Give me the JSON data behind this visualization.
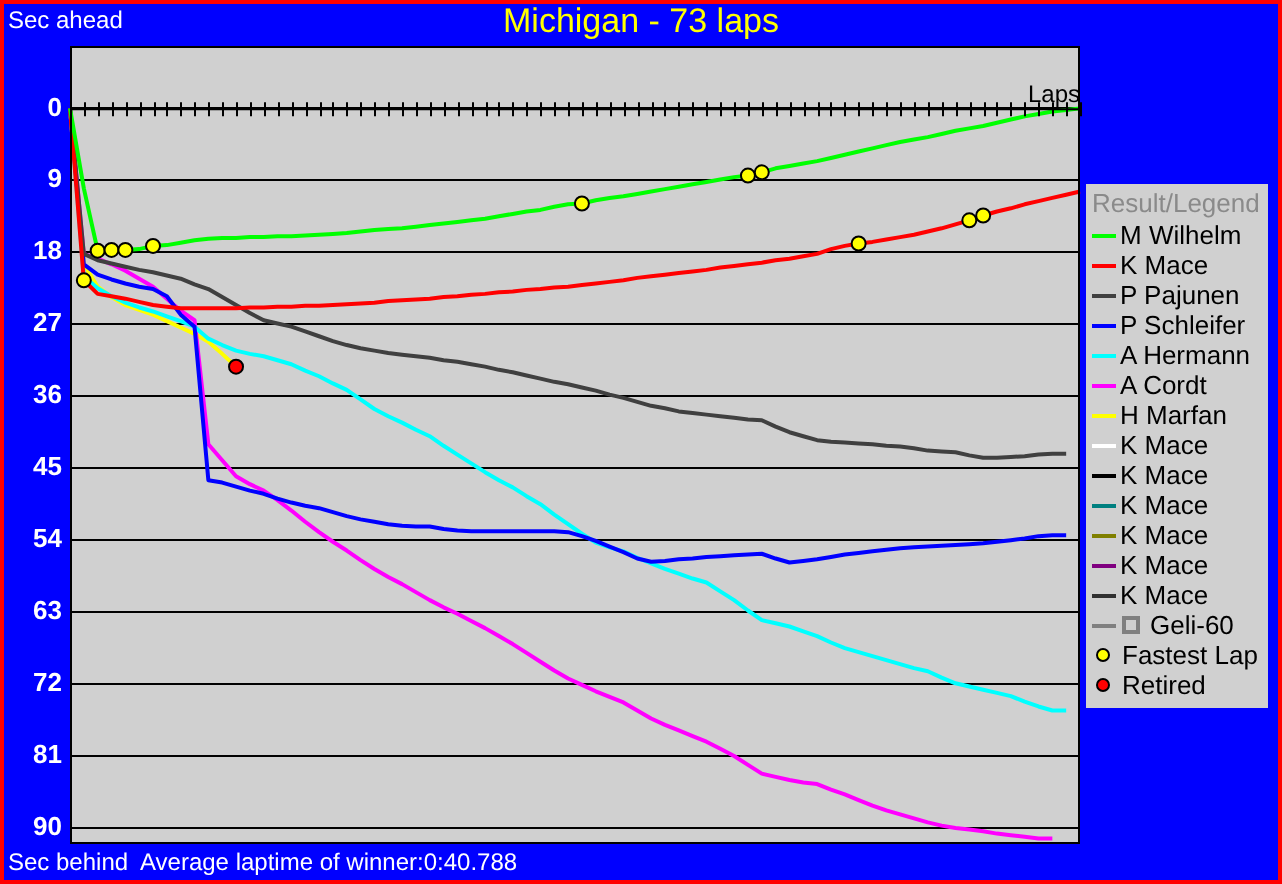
{
  "chart_data": {
    "type": "line",
    "title": "Michigan - 73 laps",
    "xlabel": "Laps",
    "legend_title": "Result/Legend",
    "annotations": [
      "Sec ahead",
      "Sec behind",
      "Average laptime of winner:0:40.788"
    ],
    "categories": [
      null,
      null,
      null,
      null,
      null,
      null,
      null,
      null,
      null,
      null,
      null,
      null,
      null,
      null,
      null,
      null,
      null,
      null,
      null,
      null,
      null,
      null,
      null,
      null,
      null,
      null,
      null,
      null,
      null,
      null,
      null,
      null,
      null,
      null,
      null,
      null,
      null,
      null,
      null,
      null,
      null,
      null,
      null,
      null,
      null,
      null,
      null,
      null,
      null,
      null,
      null,
      null,
      null,
      null,
      null,
      null,
      null,
      null,
      null,
      null,
      null,
      null,
      null,
      null,
      null,
      null,
      null,
      null,
      null,
      null,
      null,
      null,
      null,
      null
    ],
    "ylim": [
      92,
      -7.8
    ],
    "yticks": [
      0,
      9,
      18,
      27,
      36,
      45,
      54,
      63,
      72,
      81,
      90
    ],
    "grid": "y",
    "legend": "right",
    "tick_labels": "y",
    "marker": "none",
    "line_style": "solid",
    "series": [
      {
        "name": "M Wilhelm",
        "color": "#00ff00",
        "values": [
          0,
          10,
          17.8,
          17.7,
          17.7,
          17.6,
          17.2,
          17.1,
          16.8,
          16.5,
          16.3,
          16.2,
          16.2,
          16.1,
          16.1,
          16.0,
          16.0,
          15.9,
          15.8,
          15.7,
          15.6,
          15.4,
          15.2,
          15.1,
          15.0,
          14.8,
          14.6,
          14.4,
          14.2,
          14.0,
          13.8,
          13.5,
          13.2,
          12.9,
          12.7,
          12.3,
          12.0,
          11.9,
          11.5,
          11.2,
          11.0,
          10.7,
          10.4,
          10.1,
          9.8,
          9.5,
          9.2,
          8.9,
          8.6,
          8.4,
          8.0,
          7.5,
          7.2,
          6.9,
          6.6,
          6.2,
          5.8,
          5.4,
          5.0,
          4.6,
          4.2,
          3.9,
          3.6,
          3.2,
          2.8,
          2.5,
          2.2,
          1.8,
          1.4,
          1.0,
          0.7,
          0.4,
          0.2,
          0
        ]
      },
      {
        "name": "K Mace",
        "color": "#ff0000",
        "values": [
          0,
          21.5,
          23.2,
          23.5,
          23.8,
          24.2,
          24.6,
          24.8,
          25.0,
          25.0,
          25.0,
          25.0,
          25.0,
          24.9,
          24.9,
          24.8,
          24.8,
          24.7,
          24.7,
          24.6,
          24.5,
          24.4,
          24.3,
          24.1,
          24.0,
          23.9,
          23.8,
          23.6,
          23.5,
          23.3,
          23.2,
          23.0,
          22.9,
          22.7,
          22.6,
          22.4,
          22.3,
          22.1,
          21.9,
          21.7,
          21.5,
          21.2,
          21.0,
          20.8,
          20.6,
          20.4,
          20.2,
          19.9,
          19.7,
          19.5,
          19.3,
          19.0,
          18.8,
          18.5,
          18.2,
          17.6,
          17.2,
          16.9,
          16.7,
          16.4,
          16.1,
          15.8,
          15.4,
          15.0,
          14.5,
          14.0,
          13.4,
          12.9,
          12.5,
          12.0,
          11.6,
          11.2,
          10.8,
          10.4
        ]
      },
      {
        "name": "P Pajunen",
        "color": "#404040",
        "values": [
          0,
          18.2,
          19.0,
          19.4,
          19.8,
          20.2,
          20.5,
          20.9,
          21.3,
          22.0,
          22.6,
          23.6,
          24.6,
          25.6,
          26.5,
          26.9,
          27.3,
          27.9,
          28.5,
          29.1,
          29.6,
          30.0,
          30.3,
          30.6,
          30.8,
          31.0,
          31.2,
          31.5,
          31.7,
          32.0,
          32.3,
          32.7,
          33.0,
          33.4,
          33.8,
          34.2,
          34.5,
          34.9,
          35.3,
          35.8,
          36.2,
          36.7,
          37.2,
          37.5,
          37.9,
          38.1,
          38.3,
          38.5,
          38.7,
          38.9,
          39.0,
          39.8,
          40.5,
          41.0,
          41.5,
          41.7,
          41.8,
          41.9,
          42.0,
          42.2,
          42.3,
          42.5,
          42.8,
          42.9,
          43.0,
          43.4,
          43.7,
          43.7,
          43.6,
          43.5,
          43.3,
          43.2,
          43.2,
          null
        ]
      },
      {
        "name": "P Schleifer",
        "color": "#0000ff",
        "values": [
          0,
          19.5,
          20.8,
          21.4,
          21.9,
          22.3,
          22.6,
          23.5,
          25.8,
          27.3,
          46.5,
          46.8,
          47.3,
          47.8,
          48.2,
          48.8,
          49.3,
          49.7,
          50.0,
          50.5,
          51.0,
          51.4,
          51.7,
          52.0,
          52.2,
          52.3,
          52.3,
          52.6,
          52.8,
          52.9,
          52.9,
          52.9,
          52.9,
          52.9,
          52.9,
          52.9,
          53.0,
          53.5,
          54.1,
          54.8,
          55.5,
          56.3,
          56.7,
          56.6,
          56.4,
          56.3,
          56.1,
          56.0,
          55.9,
          55.8,
          55.7,
          56.3,
          56.8,
          56.6,
          56.4,
          56.1,
          55.8,
          55.6,
          55.4,
          55.2,
          55.0,
          54.9,
          54.8,
          54.7,
          54.6,
          54.5,
          54.4,
          54.2,
          54.0,
          53.8,
          53.5,
          53.4,
          53.4,
          null
        ]
      },
      {
        "name": "A Hermann",
        "color": "#00ffff",
        "values": [
          0,
          21.0,
          22.5,
          23.5,
          24.3,
          24.9,
          25.4,
          26.0,
          26.6,
          27.3,
          28.8,
          29.6,
          30.3,
          30.7,
          31.0,
          31.5,
          32.0,
          32.8,
          33.5,
          34.4,
          35.2,
          36.4,
          37.6,
          38.5,
          39.3,
          40.2,
          41.0,
          42.2,
          43.3,
          44.4,
          45.5,
          46.5,
          47.4,
          48.5,
          49.5,
          50.8,
          52.0,
          53.2,
          54.3,
          54.9,
          55.4,
          56.2,
          56.9,
          57.6,
          58.2,
          58.8,
          59.3,
          60.4,
          61.5,
          62.8,
          64.0,
          64.4,
          64.8,
          65.4,
          66.0,
          66.8,
          67.5,
          68.0,
          68.5,
          69.0,
          69.5,
          70.0,
          70.4,
          71.2,
          71.9,
          72.3,
          72.7,
          73.1,
          73.5,
          74.2,
          74.8,
          75.3,
          75.3,
          null
        ]
      },
      {
        "name": "A Cordt",
        "color": "#ff00ff",
        "values": [
          0,
          18.2,
          18.8,
          19.5,
          20.3,
          21.3,
          22.3,
          23.8,
          25.3,
          26.5,
          42.0,
          44.0,
          46.0,
          47.0,
          47.8,
          49.0,
          50.3,
          51.7,
          53.0,
          54.2,
          55.3,
          56.5,
          57.6,
          58.6,
          59.5,
          60.5,
          61.5,
          62.4,
          63.2,
          64.1,
          65.0,
          66.0,
          67.0,
          68.1,
          69.2,
          70.3,
          71.3,
          72.1,
          72.9,
          73.6,
          74.3,
          75.3,
          76.3,
          77.1,
          77.8,
          78.5,
          79.2,
          80.1,
          81.0,
          82.1,
          83.2,
          83.6,
          84.0,
          84.3,
          84.5,
          85.2,
          85.8,
          86.5,
          87.2,
          87.8,
          88.3,
          88.8,
          89.3,
          89.7,
          90.0,
          90.2,
          90.4,
          90.7,
          90.9,
          91.1,
          91.3,
          91.3,
          null,
          null
        ]
      },
      {
        "name": "H Marfan",
        "color": "#ffff00",
        "values": [
          0,
          19.5,
          22.3,
          23.6,
          24.6,
          25.2,
          25.8,
          26.6,
          27.4,
          28.2,
          29.2,
          30.7,
          32.3,
          null,
          null,
          null,
          null,
          null,
          null,
          null,
          null,
          null,
          null,
          null,
          null,
          null,
          null,
          null,
          null,
          null,
          null,
          null,
          null,
          null,
          null,
          null,
          null,
          null,
          null,
          null,
          null,
          null,
          null,
          null,
          null,
          null,
          null,
          null,
          null,
          null,
          null,
          null,
          null,
          null,
          null,
          null,
          null,
          null,
          null,
          null,
          null,
          null,
          null,
          null,
          null,
          null,
          null,
          null,
          null,
          null,
          null,
          null,
          null,
          null
        ]
      },
      {
        "name": "K Mace",
        "color": "#ffffff",
        "values": [
          null,
          null,
          null,
          null,
          null,
          null,
          null,
          null,
          null,
          null,
          null,
          null,
          null,
          null,
          null,
          null,
          null,
          null,
          null,
          null,
          null,
          null,
          null,
          null,
          null,
          null,
          null,
          null,
          null,
          null,
          null,
          null,
          null,
          null,
          null,
          null,
          null,
          null,
          null,
          null,
          null,
          null,
          null,
          null,
          null,
          null,
          null,
          null,
          null,
          null,
          null,
          null,
          null,
          null,
          null,
          null,
          null,
          null,
          null,
          null,
          null,
          null,
          null,
          null,
          null,
          null,
          null,
          null,
          null,
          null,
          null,
          null,
          null,
          null
        ]
      },
      {
        "name": "K Mace",
        "color": "#000000",
        "values": [
          null,
          null,
          null,
          null,
          null,
          null,
          null,
          null,
          null,
          null,
          null,
          null,
          null,
          null,
          null,
          null,
          null,
          null,
          null,
          null,
          null,
          null,
          null,
          null,
          null,
          null,
          null,
          null,
          null,
          null,
          null,
          null,
          null,
          null,
          null,
          null,
          null,
          null,
          null,
          null,
          null,
          null,
          null,
          null,
          null,
          null,
          null,
          null,
          null,
          null,
          null,
          null,
          null,
          null,
          null,
          null,
          null,
          null,
          null,
          null,
          null,
          null,
          null,
          null,
          null,
          null,
          null,
          null,
          null,
          null,
          null,
          null,
          null,
          null
        ]
      },
      {
        "name": "K Mace",
        "color": "#008080",
        "values": [
          null,
          null,
          null,
          null,
          null,
          null,
          null,
          null,
          null,
          null,
          null,
          null,
          null,
          null,
          null,
          null,
          null,
          null,
          null,
          null,
          null,
          null,
          null,
          null,
          null,
          null,
          null,
          null,
          null,
          null,
          null,
          null,
          null,
          null,
          null,
          null,
          null,
          null,
          null,
          null,
          null,
          null,
          null,
          null,
          null,
          null,
          null,
          null,
          null,
          null,
          null,
          null,
          null,
          null,
          null,
          null,
          null,
          null,
          null,
          null,
          null,
          null,
          null,
          null,
          null,
          null,
          null,
          null,
          null,
          null,
          null,
          null,
          null,
          null
        ]
      },
      {
        "name": "K Mace",
        "color": "#808000",
        "values": [
          null,
          null,
          null,
          null,
          null,
          null,
          null,
          null,
          null,
          null,
          null,
          null,
          null,
          null,
          null,
          null,
          null,
          null,
          null,
          null,
          null,
          null,
          null,
          null,
          null,
          null,
          null,
          null,
          null,
          null,
          null,
          null,
          null,
          null,
          null,
          null,
          null,
          null,
          null,
          null,
          null,
          null,
          null,
          null,
          null,
          null,
          null,
          null,
          null,
          null,
          null,
          null,
          null,
          null,
          null,
          null,
          null,
          null,
          null,
          null,
          null,
          null,
          null,
          null,
          null,
          null,
          null,
          null,
          null,
          null,
          null,
          null,
          null,
          null
        ]
      },
      {
        "name": "K Mace",
        "color": "#800080",
        "values": [
          null,
          null,
          null,
          null,
          null,
          null,
          null,
          null,
          null,
          null,
          null,
          null,
          null,
          null,
          null,
          null,
          null,
          null,
          null,
          null,
          null,
          null,
          null,
          null,
          null,
          null,
          null,
          null,
          null,
          null,
          null,
          null,
          null,
          null,
          null,
          null,
          null,
          null,
          null,
          null,
          null,
          null,
          null,
          null,
          null,
          null,
          null,
          null,
          null,
          null,
          null,
          null,
          null,
          null,
          null,
          null,
          null,
          null,
          null,
          null,
          null,
          null,
          null,
          null,
          null,
          null,
          null,
          null,
          null,
          null,
          null,
          null,
          null,
          null
        ]
      },
      {
        "name": "K Mace",
        "color": "#303030",
        "values": [
          null,
          null,
          null,
          null,
          null,
          null,
          null,
          null,
          null,
          null,
          null,
          null,
          null,
          null,
          null,
          null,
          null,
          null,
          null,
          null,
          null,
          null,
          null,
          null,
          null,
          null,
          null,
          null,
          null,
          null,
          null,
          null,
          null,
          null,
          null,
          null,
          null,
          null,
          null,
          null,
          null,
          null,
          null,
          null,
          null,
          null,
          null,
          null,
          null,
          null,
          null,
          null,
          null,
          null,
          null,
          null,
          null,
          null,
          null,
          null,
          null,
          null,
          null,
          null,
          null,
          null,
          null,
          null,
          null,
          null,
          null,
          null,
          null,
          null
        ]
      },
      {
        "name": "Geli-60",
        "color": "#808080",
        "marker": "square",
        "values": [
          null,
          null,
          null,
          null,
          null,
          null,
          null,
          null,
          null,
          null,
          null,
          null,
          null,
          null,
          null,
          null,
          null,
          null,
          null,
          null,
          null,
          null,
          null,
          null,
          null,
          null,
          null,
          null,
          null,
          null,
          null,
          null,
          null,
          null,
          null,
          null,
          null,
          null,
          null,
          null,
          null,
          null,
          null,
          null,
          null,
          null,
          null,
          null,
          null,
          null,
          null,
          null,
          null,
          null,
          null,
          null,
          null,
          null,
          null,
          null,
          null,
          null,
          null,
          null,
          null,
          null,
          null,
          null,
          null,
          null,
          null,
          null,
          null,
          null
        ]
      },
      {
        "name": "Fastest Lap",
        "type": "scatter",
        "marker": "circle",
        "color": "#ffff00",
        "values": [
          null,
          21.5,
          17.8,
          17.7,
          17.7,
          null,
          17.2,
          null,
          null,
          null,
          null,
          null,
          null,
          null,
          null,
          null,
          null,
          null,
          null,
          null,
          null,
          null,
          null,
          null,
          null,
          null,
          null,
          null,
          null,
          null,
          null,
          null,
          null,
          null,
          null,
          null,
          null,
          11.9,
          null,
          null,
          null,
          null,
          null,
          null,
          null,
          null,
          null,
          null,
          null,
          8.4,
          8.0,
          null,
          null,
          null,
          null,
          null,
          null,
          16.9,
          null,
          null,
          null,
          null,
          null,
          null,
          null,
          14.0,
          13.4,
          null,
          null,
          null,
          null,
          null,
          null,
          null
        ]
      },
      {
        "name": "Retired",
        "type": "scatter",
        "marker": "circle",
        "color": "#ff0000",
        "values": [
          null,
          null,
          null,
          null,
          null,
          null,
          null,
          null,
          null,
          null,
          null,
          null,
          32.3,
          null,
          null,
          null,
          null,
          null,
          null,
          null,
          null,
          null,
          null,
          null,
          null,
          null,
          null,
          null,
          null,
          null,
          null,
          null,
          null,
          null,
          null,
          null,
          null,
          null,
          null,
          null,
          null,
          null,
          null,
          null,
          null,
          null,
          null,
          null,
          null,
          null,
          null,
          null,
          null,
          null,
          null,
          null,
          null,
          null,
          null,
          null,
          null,
          null,
          null,
          null,
          null,
          null,
          null,
          null,
          null,
          null,
          null,
          null,
          null,
          null
        ]
      }
    ]
  }
}
